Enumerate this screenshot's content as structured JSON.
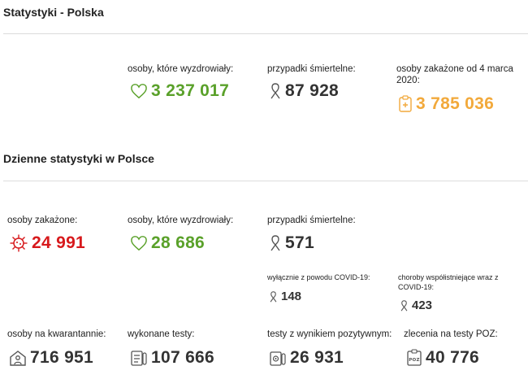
{
  "sections": {
    "poland_title": "Statystyki - Polska",
    "daily_title": "Dzienne statystyki w Polsce"
  },
  "totals": {
    "recovered": {
      "label": "osoby, które wyzdrowiały:",
      "value": "3 237 017",
      "icon": "heart-icon",
      "color": "#5aa12a"
    },
    "deaths": {
      "label": "przypadki śmiertelne:",
      "value": "87 928",
      "icon": "ribbon-icon",
      "color": "#333333"
    },
    "infected": {
      "label": "osoby zakażone od 4 marca 2020:",
      "value": "3 785 036",
      "icon": "medical-clipboard-icon",
      "color": "#f2a93b"
    }
  },
  "daily": {
    "infected": {
      "label": "osoby zakażone:",
      "value": "24 991",
      "icon": "virus-icon",
      "color": "#d7191c"
    },
    "recovered": {
      "label": "osoby, które wyzdrowiały:",
      "value": "28 686",
      "icon": "heart-icon",
      "color": "#5aa12a"
    },
    "deaths": {
      "label": "przypadki śmiertelne:",
      "value": "571",
      "icon": "ribbon-icon"
    },
    "deaths_covid_only": {
      "label": "wyłącznie z powodu COVID-19:",
      "value": "148",
      "icon": "ribbon-icon"
    },
    "deaths_comorbid": {
      "label": "choroby współistniejące wraz z COVID-19:",
      "value": "423",
      "icon": "ribbon-icon"
    },
    "quarantine": {
      "label": "osoby na kwarantannie:",
      "value": "716 951",
      "icon": "house-person-icon"
    },
    "tests": {
      "label": "wykonane testy:",
      "value": "107 666",
      "icon": "test-list-icon"
    },
    "positive_tests": {
      "label": "testy z wynikiem pozytywnym:",
      "value": "26 931",
      "icon": "test-tube-icon"
    },
    "poz_orders": {
      "label": "zlecenia na testy POZ:",
      "value": "40 776",
      "icon": "poz-clipboard-icon"
    }
  }
}
